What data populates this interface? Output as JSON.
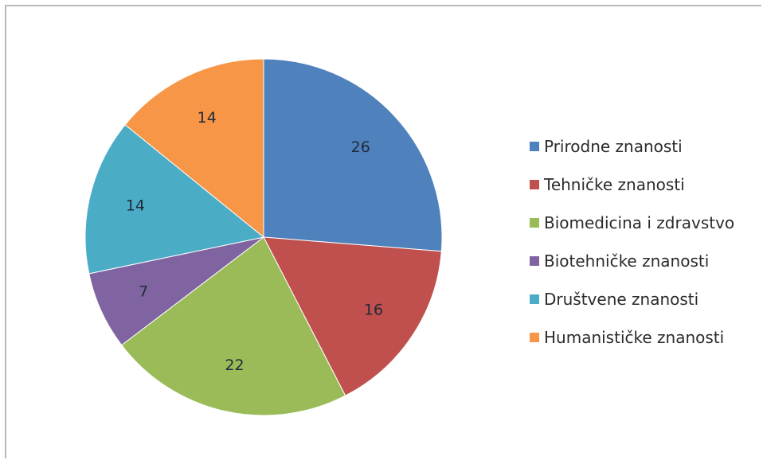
{
  "chart_data": {
    "type": "pie",
    "title": "",
    "legend_position": "right",
    "slices": [
      {
        "name": "Prirodne znanosti",
        "label": "26",
        "value": 26,
        "color": "#4f81bd"
      },
      {
        "name": "Tehničke znanosti",
        "label": "16",
        "value": 16,
        "color": "#c0504d"
      },
      {
        "name": "Biomedicina i zdravstvo",
        "label": "22",
        "value": 22,
        "color": "#9bbb59"
      },
      {
        "name": "Biotehničke znanosti",
        "label": "7",
        "value": 7,
        "color": "#8064a2"
      },
      {
        "name": "Društvene znanosti",
        "label": "14",
        "value": 14,
        "color": "#4bacc6"
      },
      {
        "name": "Humanističke znanosti",
        "label": "14",
        "value": 14,
        "color": "#f79646"
      }
    ]
  }
}
